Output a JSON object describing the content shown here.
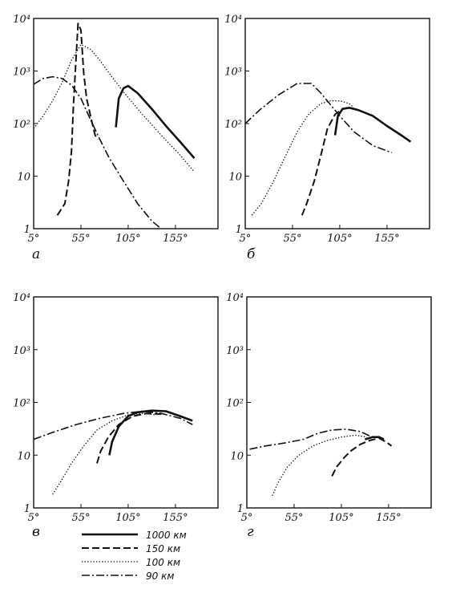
{
  "chart_data": [
    {
      "type": "line",
      "panel_label": "а",
      "yscale": "log",
      "ylim": [
        1,
        10000
      ],
      "xlim": [
        5,
        200
      ],
      "x_ticks": [
        "5°",
        "55°",
        "105°",
        "155°"
      ],
      "y_ticks": [
        "1",
        "10",
        "10²",
        "10³",
        "10⁴"
      ],
      "series": [
        {
          "name": "1000 км",
          "x": [
            92,
            95,
            100,
            105,
            115,
            130,
            145,
            160,
            175
          ],
          "y": [
            85,
            300,
            470,
            520,
            380,
            190,
            90,
            45,
            22
          ]
        },
        {
          "name": "150 км",
          "x": [
            30,
            38,
            42,
            45,
            47,
            50,
            52,
            55,
            58,
            61,
            66,
            70,
            73
          ],
          "y": [
            1.8,
            3,
            8,
            30,
            200,
            2000,
            8000,
            6000,
            900,
            300,
            120,
            60,
            50
          ]
        },
        {
          "name": "100 км",
          "x": [
            5,
            15,
            25,
            35,
            45,
            55,
            65,
            75,
            85,
            100,
            120,
            140,
            160,
            175
          ],
          "y": [
            80,
            140,
            270,
            600,
            1600,
            3200,
            2600,
            1600,
            900,
            400,
            150,
            60,
            25,
            12
          ]
        },
        {
          "name": "90 км",
          "x": [
            5,
            15,
            25,
            35,
            45,
            55,
            65,
            75,
            85,
            100,
            115,
            130,
            140
          ],
          "y": [
            560,
            720,
            780,
            720,
            540,
            300,
            120,
            50,
            22,
            8,
            3,
            1.4,
            1
          ]
        }
      ]
    },
    {
      "type": "line",
      "panel_label": "б",
      "yscale": "log",
      "ylim": [
        1,
        10000
      ],
      "xlim": [
        5,
        200
      ],
      "x_ticks": [
        "5°",
        "55°",
        "105°",
        "155°"
      ],
      "y_ticks": [
        "1",
        "10",
        "10²",
        "10³",
        "10⁴"
      ],
      "series": [
        {
          "name": "1000 км",
          "x": [
            100,
            103,
            108,
            115,
            125,
            140,
            155,
            170,
            180
          ],
          "y": [
            60,
            140,
            190,
            200,
            180,
            140,
            90,
            60,
            45
          ]
        },
        {
          "name": "150 км",
          "x": [
            65,
            70,
            78,
            85,
            92,
            100,
            108,
            115
          ],
          "y": [
            1.8,
            3,
            8,
            25,
            80,
            150,
            190,
            200
          ]
        },
        {
          "name": "100 км",
          "x": [
            12,
            22,
            35,
            48,
            60,
            72,
            85,
            95,
            105,
            115,
            120
          ],
          "y": [
            1.8,
            3,
            8,
            25,
            70,
            150,
            240,
            270,
            270,
            240,
            200
          ]
        },
        {
          "name": "90 км",
          "x": [
            5,
            20,
            40,
            60,
            75,
            85,
            95,
            105,
            120,
            140,
            160
          ],
          "y": [
            100,
            180,
            350,
            580,
            580,
            380,
            230,
            140,
            70,
            38,
            28
          ]
        }
      ]
    },
    {
      "type": "line",
      "panel_label": "в",
      "yscale": "log",
      "ylim": [
        1,
        10000
      ],
      "xlim": [
        5,
        200
      ],
      "x_ticks": [
        "5°",
        "55°",
        "105°",
        "155°"
      ],
      "y_ticks": [
        "1",
        "10",
        "10²",
        "10³",
        "10⁴"
      ],
      "series": [
        {
          "name": "1000 км",
          "x": [
            85,
            88,
            95,
            105,
            115,
            130,
            145,
            160,
            173
          ],
          "y": [
            10,
            18,
            35,
            55,
            65,
            70,
            68,
            55,
            45
          ]
        },
        {
          "name": "150 км",
          "x": [
            72,
            76,
            84,
            95,
            110,
            125,
            140
          ],
          "y": [
            7,
            12,
            22,
            38,
            55,
            62,
            60
          ]
        },
        {
          "name": "100 км",
          "x": [
            25,
            33,
            45,
            58,
            72,
            88,
            105,
            120,
            135
          ],
          "y": [
            1.8,
            3,
            7,
            15,
            30,
            45,
            58,
            62,
            58
          ]
        },
        {
          "name": "90 км",
          "x": [
            5,
            25,
            50,
            75,
            100,
            120,
            140,
            160,
            173
          ],
          "y": [
            20,
            27,
            38,
            50,
            62,
            68,
            62,
            50,
            38
          ]
        }
      ]
    },
    {
      "type": "line",
      "panel_label": "г",
      "yscale": "log",
      "ylim": [
        1,
        10000
      ],
      "xlim": [
        5,
        200
      ],
      "x_ticks": [
        "5°",
        "55°",
        "105°",
        "155°"
      ],
      "y_ticks": [
        "1",
        "10",
        "10²",
        "10³",
        "10⁴"
      ],
      "series": [
        {
          "name": "1000 км",
          "x": [
            130,
            138,
            145,
            150
          ],
          "y": [
            20,
            22,
            22,
            20
          ]
        },
        {
          "name": "150 км",
          "x": [
            95,
            100,
            108,
            115,
            125,
            135,
            145,
            152,
            158
          ],
          "y": [
            4,
            6,
            9,
            12,
            16,
            19,
            21,
            18,
            15
          ]
        },
        {
          "name": "100 км",
          "x": [
            32,
            38,
            48,
            60,
            75,
            90,
            105,
            120,
            132
          ],
          "y": [
            1.7,
            3,
            6,
            10,
            15,
            19,
            22,
            24,
            22
          ]
        },
        {
          "name": "90 км",
          "x": [
            8,
            25,
            45,
            65,
            80,
            95,
            110,
            125,
            140
          ],
          "y": [
            13,
            15,
            17,
            20,
            26,
            30,
            31,
            28,
            21
          ]
        }
      ]
    }
  ],
  "legend": [
    {
      "label": "1000 км",
      "style": "solid"
    },
    {
      "label": "150 км",
      "style": "dashed"
    },
    {
      "label": "100 км",
      "style": "dotted"
    },
    {
      "label": "90 км",
      "style": "dashdot"
    }
  ]
}
